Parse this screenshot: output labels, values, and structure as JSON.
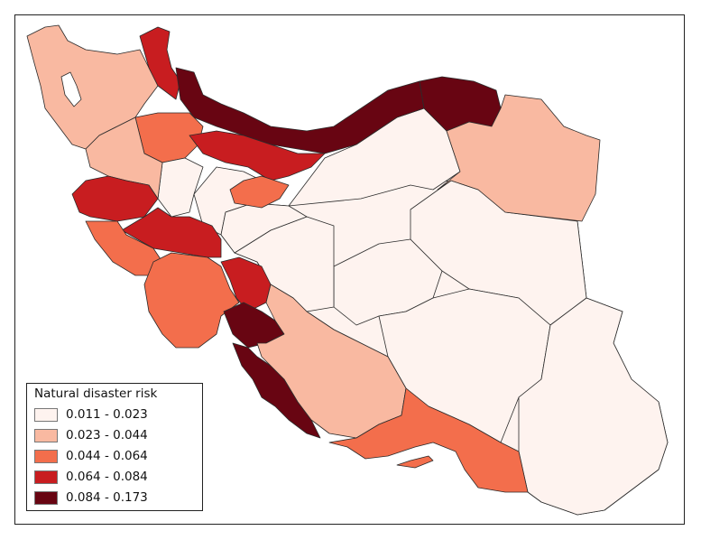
{
  "legend": {
    "title": "Natural disaster risk",
    "classes": [
      {
        "label": "0.011 - 0.023",
        "color": "#fef3ef"
      },
      {
        "label": "0.023 - 0.044",
        "color": "#f9b9a1"
      },
      {
        "label": "0.044 - 0.064",
        "color": "#f36e4c"
      },
      {
        "label": "0.064 - 0.084",
        "color": "#c81d20"
      },
      {
        "label": "0.084 - 0.173",
        "color": "#680512"
      }
    ]
  },
  "map": {
    "regions": [
      {
        "name": "northwest-region",
        "class": 1
      },
      {
        "name": "northern-border-region",
        "class": 3
      },
      {
        "name": "caspian-coast-region",
        "class": 4
      },
      {
        "name": "northeast-corner-region",
        "class": 4
      },
      {
        "name": "northeast-region",
        "class": 1
      },
      {
        "name": "north-central-region",
        "class": 2
      },
      {
        "name": "north-central-region-2",
        "class": 3
      },
      {
        "name": "small-central-north-region",
        "class": 2
      },
      {
        "name": "central-north-region",
        "class": 0
      },
      {
        "name": "western-region",
        "class": 1
      },
      {
        "name": "kermanshah-region",
        "class": 3
      },
      {
        "name": "lorestan-region",
        "class": 3
      },
      {
        "name": "ilam-region",
        "class": 2
      },
      {
        "name": "khuzestan-region",
        "class": 2
      },
      {
        "name": "kohgiluyeh-region",
        "class": 3
      },
      {
        "name": "bushehr-north-region",
        "class": 4
      },
      {
        "name": "bushehr-coast-region",
        "class": 4
      },
      {
        "name": "fars-region",
        "class": 1
      },
      {
        "name": "hormozgan-region",
        "class": 2
      },
      {
        "name": "central-iran-region",
        "class": 0
      },
      {
        "name": "semnan-region",
        "class": 0
      },
      {
        "name": "yazd-region",
        "class": 0
      },
      {
        "name": "south-khorasan-region",
        "class": 0
      },
      {
        "name": "kerman-region",
        "class": 0
      },
      {
        "name": "sistan-baluchestan-region",
        "class": 0
      },
      {
        "name": "isfahan-region",
        "class": 0
      },
      {
        "name": "tehran-region",
        "class": 0
      },
      {
        "name": "west-central-region",
        "class": 0
      },
      {
        "name": "southwest-small-region",
        "class": 3
      },
      {
        "name": "persian-gulf-islands",
        "class": 2
      }
    ]
  }
}
